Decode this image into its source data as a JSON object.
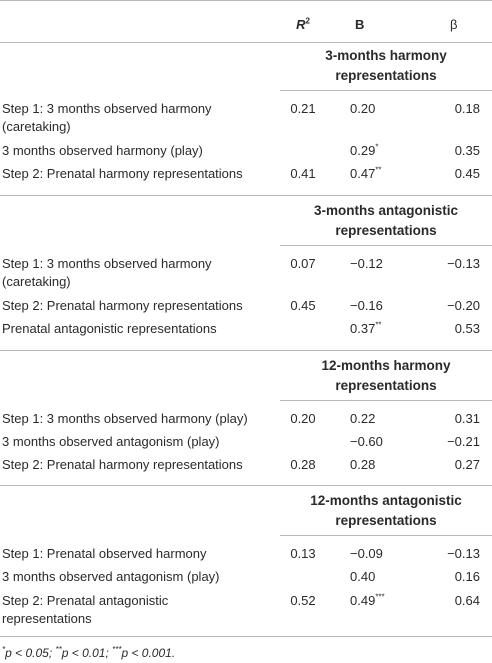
{
  "header": {
    "r2": "R",
    "r2_sup": "2",
    "b": "B",
    "beta": "β"
  },
  "sections": [
    {
      "title_line1": "3-months harmony",
      "title_line2": "representations",
      "rows": [
        {
          "label1": "Step 1: 3 months observed harmony",
          "label2": "(caretaking)",
          "r2": "0.21",
          "b": "0.20",
          "b_sig": "",
          "beta": "0.18"
        },
        {
          "label1": "3 months observed harmony (play)",
          "label2": "",
          "r2": "",
          "b": "0.29",
          "b_sig": "*",
          "beta": "0.35"
        },
        {
          "label1": "Step 2: Prenatal harmony representations",
          "label2": "",
          "r2": "0.41",
          "b": "0.47",
          "b_sig": "**",
          "beta": "0.45"
        }
      ]
    },
    {
      "title_line1": "3-months antagonistic",
      "title_line2": "representations",
      "rows": [
        {
          "label1": "Step 1: 3 months observed harmony",
          "label2": "(caretaking)",
          "r2": "0.07",
          "b": "−0.12",
          "b_sig": "",
          "beta": "−0.13"
        },
        {
          "label1": "Step 2: Prenatal harmony representations",
          "label2": "",
          "r2": "0.45",
          "b": "−0.16",
          "b_sig": "",
          "beta": "−0.20"
        },
        {
          "label1": "Prenatal antagonistic representations",
          "label2": "",
          "r2": "",
          "b": "0.37",
          "b_sig": "**",
          "beta": "0.53"
        }
      ]
    },
    {
      "title_line1": "12-months harmony",
      "title_line2": "representations",
      "rows": [
        {
          "label1": "Step 1: 3 months observed harmony (play)",
          "label2": "",
          "r2": "0.20",
          "b": "0.22",
          "b_sig": "",
          "beta": "0.31"
        },
        {
          "label1": "3 months observed antagonism (play)",
          "label2": "",
          "r2": "",
          "b": "−0.60",
          "b_sig": "",
          "beta": "−0.21"
        },
        {
          "label1": "Step 2: Prenatal harmony representations",
          "label2": "",
          "r2": "0.28",
          "b": "0.28",
          "b_sig": "",
          "beta": "0.27"
        }
      ]
    },
    {
      "title_line1": "12-months antagonistic",
      "title_line2": "representations",
      "rows": [
        {
          "label1": "Step 1: Prenatal observed harmony",
          "label2": "",
          "r2": "0.13",
          "b": "−0.09",
          "b_sig": "",
          "beta": "−0.13"
        },
        {
          "label1": "3 months observed antagonism (play)",
          "label2": "",
          "r2": "",
          "b": "0.40",
          "b_sig": "",
          "beta": "0.16"
        },
        {
          "label1": "Step 2: Prenatal antagonistic",
          "label2": "representations",
          "r2": "0.52",
          "b": "0.49",
          "b_sig": "***",
          "beta": "0.64"
        }
      ]
    }
  ],
  "footnote": {
    "p1_sig": "*",
    "p1": "p < 0.05; ",
    "p2_sig": "**",
    "p2": "p < 0.01; ",
    "p3_sig": "***",
    "p3": "p < 0.001."
  }
}
